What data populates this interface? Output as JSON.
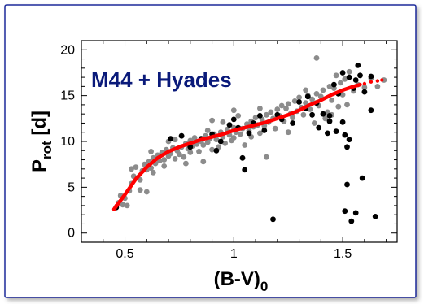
{
  "chart_data": {
    "type": "scatter",
    "title": "M44 + Hyades",
    "xlabel": {
      "main": "(B-V)",
      "sub": "0"
    },
    "ylabel": {
      "main": "P",
      "sub": "rot",
      "suffix": " [d]"
    },
    "xlim": [
      0.3,
      1.75
    ],
    "ylim": [
      -1,
      21
    ],
    "xticks": [
      {
        "value": 0.5,
        "label": "0.5"
      },
      {
        "value": 1.0,
        "label": "1"
      },
      {
        "value": 1.5,
        "label": "1.5"
      }
    ],
    "yticks": [
      {
        "value": 0,
        "label": "0"
      },
      {
        "value": 5,
        "label": "5"
      },
      {
        "value": 10,
        "label": "10"
      },
      {
        "value": 15,
        "label": "15"
      },
      {
        "value": 20,
        "label": "20"
      }
    ],
    "grid": false,
    "colors": {
      "gray": "#8c8c8c",
      "black": "#000000",
      "fit": "#ff0000",
      "title": "#0a1a7a",
      "frame": "#1a2a9a"
    },
    "series": [
      {
        "color": "gray",
        "points": [
          [
            0.47,
            3.3
          ],
          [
            0.48,
            4.1
          ],
          [
            0.49,
            3.1
          ],
          [
            0.5,
            3.8
          ],
          [
            0.51,
            3.0
          ],
          [
            0.52,
            4.6
          ],
          [
            0.53,
            5.4
          ],
          [
            0.53,
            7.0
          ],
          [
            0.54,
            6.2
          ],
          [
            0.55,
            7.2
          ],
          [
            0.56,
            6.0
          ],
          [
            0.57,
            5.8
          ],
          [
            0.57,
            4.7
          ],
          [
            0.58,
            6.8
          ],
          [
            0.59,
            7.5
          ],
          [
            0.6,
            6.9
          ],
          [
            0.6,
            4.5
          ],
          [
            0.61,
            7.8
          ],
          [
            0.62,
            7.1
          ],
          [
            0.63,
            8.2
          ],
          [
            0.63,
            6.6
          ],
          [
            0.64,
            7.6
          ],
          [
            0.65,
            8.5
          ],
          [
            0.66,
            7.9
          ],
          [
            0.67,
            8.8
          ],
          [
            0.68,
            8.0
          ],
          [
            0.68,
            7.3
          ],
          [
            0.69,
            9.1
          ],
          [
            0.7,
            8.4
          ],
          [
            0.71,
            8.7
          ],
          [
            0.72,
            9.3
          ],
          [
            0.73,
            8.1
          ],
          [
            0.73,
            10.2
          ],
          [
            0.74,
            9.0
          ],
          [
            0.75,
            8.6
          ],
          [
            0.76,
            9.4
          ],
          [
            0.77,
            8.3
          ],
          [
            0.78,
            9.8
          ],
          [
            0.79,
            9.2
          ],
          [
            0.8,
            10.1
          ],
          [
            0.8,
            8.8
          ],
          [
            0.81,
            9.5
          ],
          [
            0.82,
            10.4
          ],
          [
            0.83,
            9.7
          ],
          [
            0.84,
            8.9
          ],
          [
            0.85,
            10.0
          ],
          [
            0.86,
            9.6
          ],
          [
            0.86,
            7.8
          ],
          [
            0.87,
            10.6
          ],
          [
            0.88,
            9.9
          ],
          [
            0.89,
            10.3
          ],
          [
            0.9,
            9.1
          ],
          [
            0.9,
            12.3
          ],
          [
            0.91,
            10.8
          ],
          [
            0.92,
            10.2
          ],
          [
            0.93,
            9.4
          ],
          [
            0.94,
            11.0
          ],
          [
            0.95,
            10.5
          ],
          [
            0.96,
            9.8
          ],
          [
            0.97,
            11.3
          ],
          [
            0.98,
            10.7
          ],
          [
            0.99,
            10.1
          ],
          [
            1.0,
            11.5
          ],
          [
            1.0,
            10.4
          ],
          [
            1.01,
            11.0
          ],
          [
            1.02,
            12.8
          ],
          [
            1.03,
            10.8
          ],
          [
            1.04,
            11.4
          ],
          [
            1.05,
            9.6
          ],
          [
            1.06,
            11.9
          ],
          [
            1.07,
            11.2
          ],
          [
            1.08,
            12.2
          ],
          [
            1.08,
            10.5
          ],
          [
            1.09,
            11.6
          ],
          [
            1.1,
            12.6
          ],
          [
            1.11,
            11.8
          ],
          [
            1.12,
            10.9
          ],
          [
            1.13,
            12.4
          ],
          [
            1.14,
            11.7
          ],
          [
            1.15,
            12.9
          ],
          [
            1.15,
            8.3
          ],
          [
            1.16,
            12.1
          ],
          [
            1.17,
            13.2
          ],
          [
            1.18,
            12.5
          ],
          [
            1.19,
            11.4
          ],
          [
            1.2,
            13.5
          ],
          [
            1.21,
            12.8
          ],
          [
            1.22,
            13.9
          ],
          [
            1.23,
            12.2
          ],
          [
            1.24,
            13.6
          ],
          [
            1.25,
            14.1
          ],
          [
            1.26,
            13.0
          ],
          [
            1.27,
            12.6
          ],
          [
            1.28,
            14.4
          ],
          [
            1.29,
            13.3
          ],
          [
            1.3,
            14.8
          ],
          [
            1.31,
            13.7
          ],
          [
            1.32,
            12.9
          ],
          [
            1.33,
            14.2
          ],
          [
            1.34,
            15.0
          ],
          [
            1.35,
            13.5
          ],
          [
            1.36,
            14.6
          ],
          [
            1.37,
            12.0
          ],
          [
            1.38,
            15.2
          ],
          [
            1.38,
            19.1
          ],
          [
            1.39,
            13.9
          ],
          [
            1.4,
            14.9
          ],
          [
            1.41,
            15.6
          ],
          [
            1.42,
            12.5
          ],
          [
            1.43,
            13.2
          ],
          [
            1.44,
            16.0
          ],
          [
            1.45,
            14.5
          ],
          [
            1.46,
            15.8
          ],
          [
            1.47,
            17.2
          ],
          [
            1.48,
            13.8
          ],
          [
            1.49,
            16.4
          ],
          [
            1.5,
            15.1
          ],
          [
            1.51,
            16.8
          ],
          [
            1.52,
            14.0
          ],
          [
            1.53,
            17.6
          ],
          [
            1.55,
            15.5
          ],
          [
            1.57,
            16.2
          ],
          [
            1.6,
            15.9
          ],
          [
            1.63,
            16.9
          ],
          [
            1.66,
            16.0
          ],
          [
            1.69,
            16.7
          ],
          [
            1.0,
            13.4
          ],
          [
            1.12,
            13.6
          ],
          [
            0.95,
            12.1
          ],
          [
            0.88,
            11.2
          ],
          [
            0.7,
            10.0
          ],
          [
            0.62,
            8.9
          ],
          [
            0.78,
            7.6
          ],
          [
            1.25,
            11.0
          ],
          [
            1.33,
            15.6
          ],
          [
            1.45,
            12.9
          ]
        ]
      },
      {
        "color": "black",
        "points": [
          [
            0.46,
            2.8
          ],
          [
            0.71,
            10.3
          ],
          [
            0.76,
            10.6
          ],
          [
            0.8,
            9.4
          ],
          [
            0.85,
            10.3
          ],
          [
            0.9,
            10.8
          ],
          [
            0.92,
            9.0
          ],
          [
            0.94,
            10.0
          ],
          [
            0.98,
            11.8
          ],
          [
            1.0,
            12.4
          ],
          [
            1.02,
            11.5
          ],
          [
            1.04,
            8.2
          ],
          [
            1.05,
            6.9
          ],
          [
            1.07,
            10.9
          ],
          [
            1.09,
            12.0
          ],
          [
            1.12,
            12.8
          ],
          [
            1.14,
            11.2
          ],
          [
            1.18,
            1.5
          ],
          [
            1.2,
            12.9
          ],
          [
            1.22,
            12.4
          ],
          [
            1.27,
            12.0
          ],
          [
            1.3,
            14.3
          ],
          [
            1.33,
            13.6
          ],
          [
            1.34,
            14.9
          ],
          [
            1.36,
            12.9
          ],
          [
            1.38,
            14.2
          ],
          [
            1.39,
            11.5
          ],
          [
            1.41,
            13.0
          ],
          [
            1.43,
            10.9
          ],
          [
            1.44,
            12.8
          ],
          [
            1.46,
            16.2
          ],
          [
            1.47,
            11.1
          ],
          [
            1.48,
            15.2
          ],
          [
            1.5,
            17.5
          ],
          [
            1.5,
            12.1
          ],
          [
            1.51,
            2.4
          ],
          [
            1.52,
            5.3
          ],
          [
            1.52,
            9.4
          ],
          [
            1.53,
            17.0
          ],
          [
            1.54,
            1.3
          ],
          [
            1.55,
            15.8
          ],
          [
            1.56,
            2.2
          ],
          [
            1.57,
            18.3
          ],
          [
            1.58,
            17.2
          ],
          [
            1.59,
            6.0
          ],
          [
            1.6,
            15.4
          ],
          [
            1.63,
            13.4
          ],
          [
            1.63,
            17.1
          ],
          [
            1.65,
            1.8
          ],
          [
            1.56,
            16.7
          ],
          [
            1.44,
            12.2
          ],
          [
            1.51,
            10.7
          ],
          [
            1.53,
            10.2
          ]
        ]
      }
    ],
    "fit_curve": [
      [
        0.45,
        2.6
      ],
      [
        0.5,
        4.2
      ],
      [
        0.55,
        5.9
      ],
      [
        0.6,
        7.2
      ],
      [
        0.65,
        8.2
      ],
      [
        0.7,
        8.9
      ],
      [
        0.75,
        9.4
      ],
      [
        0.8,
        9.8
      ],
      [
        0.85,
        10.2
      ],
      [
        0.9,
        10.5
      ],
      [
        0.95,
        10.8
      ],
      [
        1.0,
        11.2
      ],
      [
        1.05,
        11.5
      ],
      [
        1.1,
        11.8
      ],
      [
        1.15,
        12.1
      ],
      [
        1.2,
        12.5
      ],
      [
        1.25,
        12.9
      ],
      [
        1.3,
        13.4
      ],
      [
        1.35,
        14.0
      ],
      [
        1.4,
        14.5
      ],
      [
        1.45,
        15.1
      ],
      [
        1.5,
        15.6
      ],
      [
        1.55,
        16.0
      ],
      [
        1.58,
        16.2
      ]
    ],
    "fit_extension": [
      [
        0.45,
        2.6
      ],
      [
        0.46,
        3.0
      ],
      [
        1.6,
        16.3
      ],
      [
        1.63,
        16.5
      ],
      [
        1.66,
        16.6
      ],
      [
        1.68,
        16.7
      ]
    ]
  }
}
